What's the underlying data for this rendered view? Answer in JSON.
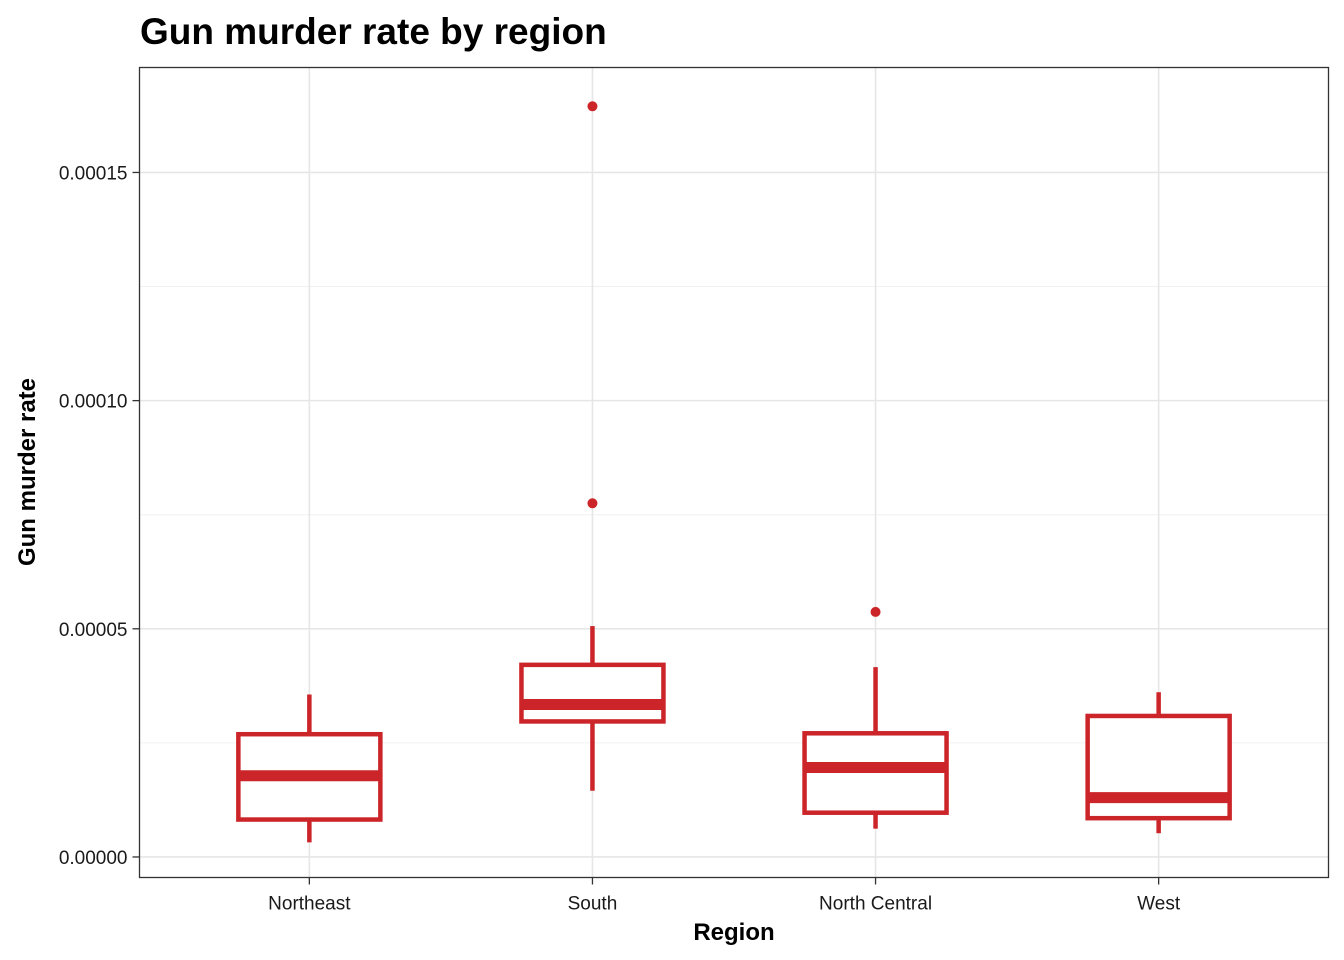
{
  "chart_data": {
    "type": "box",
    "title": "Gun murder rate by region",
    "xlabel": "Region",
    "ylabel": "Gun murder rate",
    "ylim": [
      -4.5e-06,
      0.000173
    ],
    "yticks": [
      0,
      5e-05,
      0.0001,
      0.00015
    ],
    "ytick_labels": [
      "0.00000",
      "0.00005",
      "0.00010",
      "0.00015"
    ],
    "categories": [
      "Northeast",
      "South",
      "North Central",
      "West"
    ],
    "grid": true,
    "color": "#cc2529",
    "boxes": [
      {
        "category": "Northeast",
        "whisker_low": 3.2e-06,
        "q1": 8.2e-06,
        "median": 1.78e-05,
        "q3": 2.69e-05,
        "whisker_high": 3.56e-05,
        "outliers": []
      },
      {
        "category": "South",
        "whisker_low": 1.45e-05,
        "q1": 2.97e-05,
        "median": 3.34e-05,
        "q3": 4.21e-05,
        "whisker_high": 5.06e-05,
        "outliers": [
          7.75e-05,
          0.0001645
        ]
      },
      {
        "category": "North Central",
        "whisker_low": 6.2e-06,
        "q1": 9.7e-06,
        "median": 1.96e-05,
        "q3": 2.71e-05,
        "whisker_high": 4.16e-05,
        "outliers": [
          5.37e-05
        ]
      },
      {
        "category": "West",
        "whisker_low": 5.2e-06,
        "q1": 8.5e-06,
        "median": 1.3e-05,
        "q3": 3.09e-05,
        "whisker_high": 3.61e-05,
        "outliers": []
      }
    ]
  }
}
